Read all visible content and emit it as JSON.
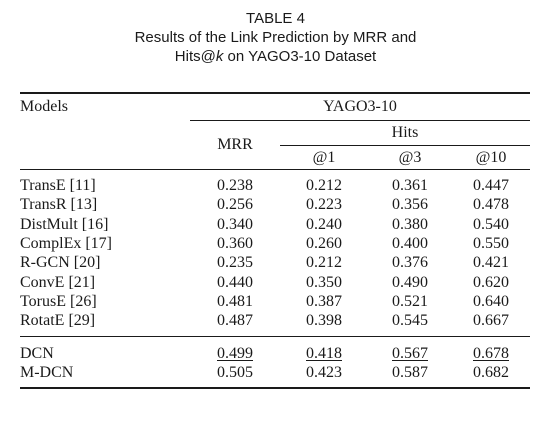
{
  "caption": {
    "label": "TABLE 4",
    "line1": "Results of the Link Prediction by MRR and",
    "line2_prefix": "Hits@",
    "line2_k": "k",
    "line2_suffix": " on YAGO3-10 Dataset"
  },
  "table": {
    "header": {
      "models": "Models",
      "dataset": "YAGO3-10",
      "mrr": "MRR",
      "hits": "Hits",
      "at1": "@1",
      "at3": "@3",
      "at10": "@10"
    },
    "rows": [
      {
        "model": "TransE [11]",
        "mrr": "0.238",
        "h1": "0.212",
        "h3": "0.361",
        "h10": "0.447"
      },
      {
        "model": "TransR [13]",
        "mrr": "0.256",
        "h1": "0.223",
        "h3": "0.356",
        "h10": "0.478"
      },
      {
        "model": "DistMult [16]",
        "mrr": "0.340",
        "h1": "0.240",
        "h3": "0.380",
        "h10": "0.540"
      },
      {
        "model": "ComplEx [17]",
        "mrr": "0.360",
        "h1": "0.260",
        "h3": "0.400",
        "h10": "0.550"
      },
      {
        "model": "R-GCN [20]",
        "mrr": "0.235",
        "h1": "0.212",
        "h3": "0.376",
        "h10": "0.421"
      },
      {
        "model": "ConvE [21]",
        "mrr": "0.440",
        "h1": "0.350",
        "h3": "0.490",
        "h10": "0.620"
      },
      {
        "model": "TorusE [26]",
        "mrr": "0.481",
        "h1": "0.387",
        "h3": "0.521",
        "h10": "0.640"
      },
      {
        "model": "RotatE [29]",
        "mrr": "0.487",
        "h1": "0.398",
        "h3": "0.545",
        "h10": "0.667"
      }
    ],
    "proposed": [
      {
        "model": "DCN",
        "mrr": "0.499",
        "h1": "0.418",
        "h3": "0.567",
        "h10": "0.678",
        "style": "underline"
      },
      {
        "model": "M-DCN",
        "mrr": "0.505",
        "h1": "0.423",
        "h3": "0.587",
        "h10": "0.682",
        "style": "bold"
      }
    ]
  }
}
